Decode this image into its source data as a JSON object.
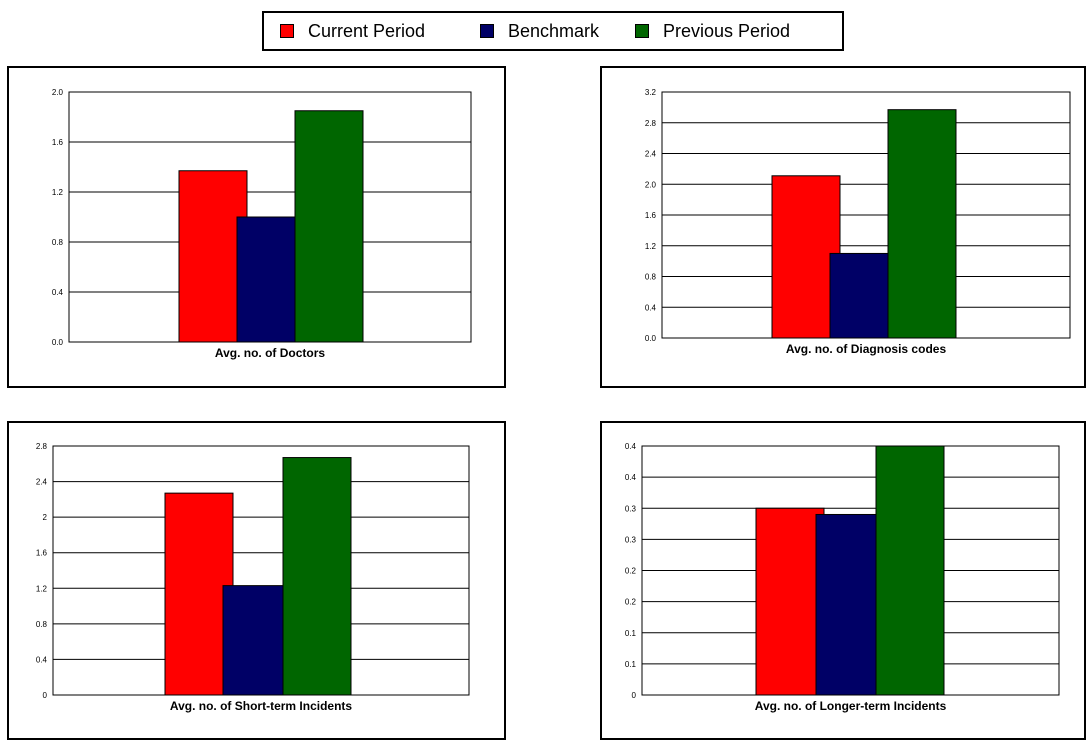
{
  "legend": {
    "items": [
      {
        "label": "Current Period",
        "color": "#ff0000"
      },
      {
        "label": "Benchmark",
        "color": "#000066"
      },
      {
        "label": "Previous Period",
        "color": "#006600"
      }
    ]
  },
  "chart_data": [
    {
      "type": "bar",
      "xlabel": "Avg. no. of Doctors",
      "series": [
        {
          "name": "Current Period",
          "values": [
            1.37
          ]
        },
        {
          "name": "Benchmark",
          "values": [
            1.0
          ]
        },
        {
          "name": "Previous Period",
          "values": [
            1.85
          ]
        }
      ],
      "ylim": [
        0,
        2.0
      ],
      "yticks": [
        "0.0",
        "0.4",
        "0.8",
        "1.2",
        "1.6",
        "2.0"
      ],
      "grid": true
    },
    {
      "type": "bar",
      "xlabel": "Avg. no. of Diagnosis codes",
      "series": [
        {
          "name": "Current Period",
          "values": [
            2.11
          ]
        },
        {
          "name": "Benchmark",
          "values": [
            1.1
          ]
        },
        {
          "name": "Previous Period",
          "values": [
            2.97
          ]
        }
      ],
      "ylim": [
        0,
        3.2
      ],
      "yticks": [
        "0.0",
        "0.4",
        "0.8",
        "1.2",
        "1.6",
        "2.0",
        "2.4",
        "2.8",
        "3.2"
      ],
      "grid": true
    },
    {
      "type": "bar",
      "xlabel": "Avg. no. of Short-term Incidents",
      "series": [
        {
          "name": "Current Period",
          "values": [
            2.27
          ]
        },
        {
          "name": "Benchmark",
          "values": [
            1.23
          ]
        },
        {
          "name": "Previous Period",
          "values": [
            2.67
          ]
        }
      ],
      "ylim": [
        0,
        2.8
      ],
      "yticks": [
        "0",
        "0.4",
        "0.8",
        "1.2",
        "1.6",
        "2",
        "2.4",
        "2.8"
      ],
      "grid": true
    },
    {
      "type": "bar",
      "xlabel": "Avg. no. of Longer-term Incidents",
      "series": [
        {
          "name": "Current Period",
          "values": [
            0.3
          ]
        },
        {
          "name": "Benchmark",
          "values": [
            0.29
          ]
        },
        {
          "name": "Previous Period",
          "values": [
            0.4
          ]
        }
      ],
      "ylim": [
        0,
        0.4
      ],
      "yticks": [
        "0",
        "0.1",
        "0.1",
        "0.2",
        "0.2",
        "0.3",
        "0.3",
        "0.4",
        "0.4"
      ],
      "grid": true
    }
  ]
}
